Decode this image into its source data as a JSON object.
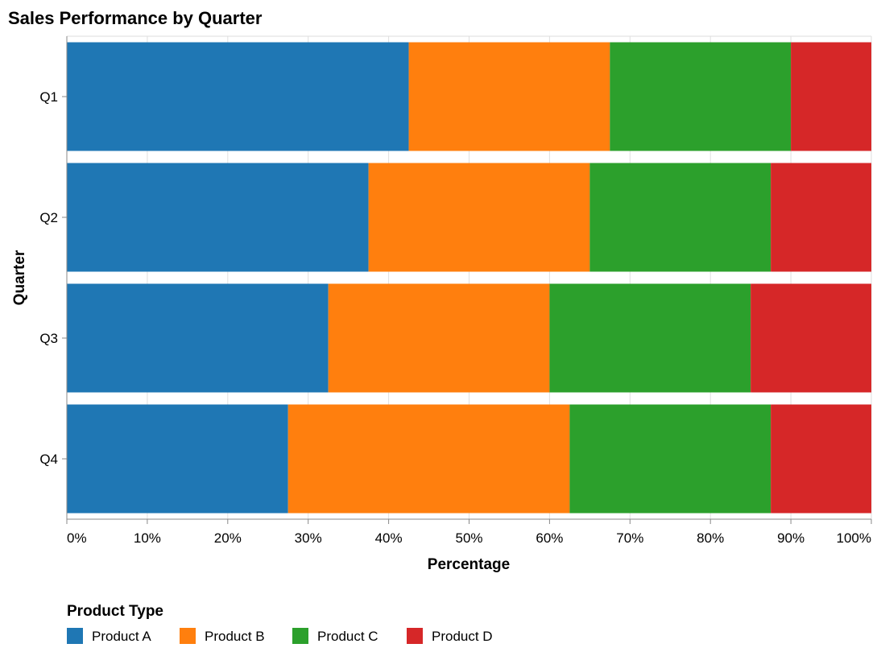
{
  "chart_data": {
    "type": "bar",
    "orientation": "horizontal",
    "stacked": true,
    "normalized": true,
    "title": "Sales Performance by Quarter",
    "xlabel": "Percentage",
    "ylabel": "Quarter",
    "xlim": [
      0,
      1
    ],
    "x_ticks": [
      "0%",
      "10%",
      "20%",
      "30%",
      "40%",
      "50%",
      "60%",
      "70%",
      "80%",
      "90%",
      "100%"
    ],
    "grid": true,
    "categories": [
      "Q1",
      "Q2",
      "Q3",
      "Q4"
    ],
    "series": [
      {
        "name": "Product A",
        "color": "#1f77b4",
        "values": [
          0.425,
          0.375,
          0.325,
          0.275
        ]
      },
      {
        "name": "Product B",
        "color": "#ff7f0e",
        "values": [
          0.25,
          0.275,
          0.275,
          0.35
        ]
      },
      {
        "name": "Product C",
        "color": "#2ca02c",
        "values": [
          0.225,
          0.225,
          0.25,
          0.25
        ]
      },
      {
        "name": "Product D",
        "color": "#d62728",
        "values": [
          0.1,
          0.125,
          0.15,
          0.125
        ]
      }
    ],
    "legend": {
      "title": "Product Type",
      "placement": "bottom-left"
    }
  }
}
